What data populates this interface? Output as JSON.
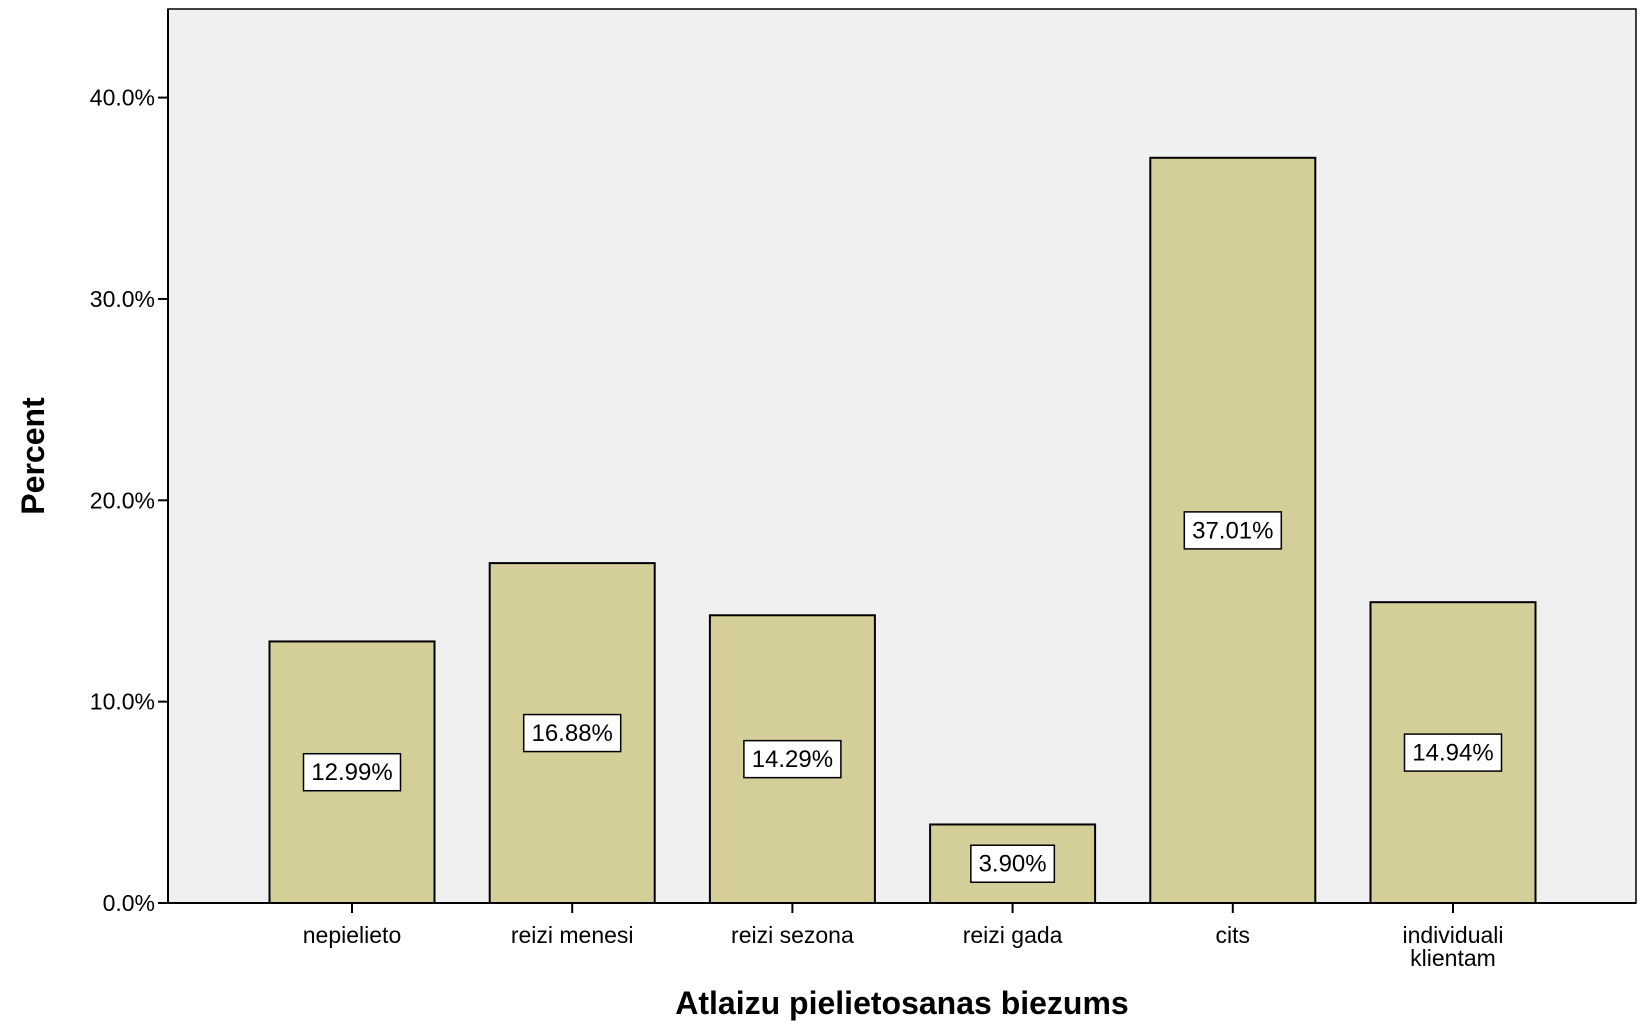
{
  "chart_data": {
    "type": "bar",
    "xlabel": "Atlaizu pielietosanas biezums",
    "ylabel": "Percent",
    "categories": [
      "nepielieto",
      "reizi menesi",
      "reizi sezona",
      "reizi gada",
      "cits",
      "individuali klientam"
    ],
    "category_lines": [
      [
        "nepielieto"
      ],
      [
        "reizi menesi"
      ],
      [
        "reizi sezona"
      ],
      [
        "reizi gada"
      ],
      [
        "cits"
      ],
      [
        "individuali",
        "klientam"
      ]
    ],
    "values": [
      12.99,
      16.88,
      14.29,
      3.9,
      37.01,
      14.94
    ],
    "data_labels": [
      "12.99%",
      "16.88%",
      "14.29%",
      "3.90%",
      "37.01%",
      "14.94%"
    ],
    "y_ticks": [
      0,
      10,
      20,
      30,
      40
    ],
    "y_tick_labels": [
      "0.0%",
      "10.0%",
      "20.0%",
      "30.0%",
      "40.0%"
    ],
    "ylim": [
      0,
      44.4
    ],
    "grid": false,
    "legend": "none",
    "colors": {
      "bar_fill": "#d4cf99",
      "bar_stroke": "#000000",
      "plot_background": "#f0f0f0",
      "label_box": "#ffffff"
    }
  }
}
